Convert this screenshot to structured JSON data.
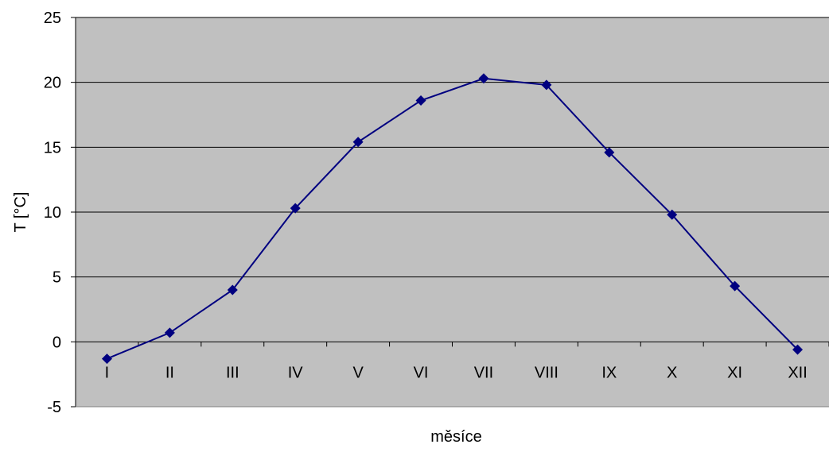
{
  "chart_data": {
    "type": "line",
    "title": "",
    "xlabel": "měsíce",
    "ylabel": "T [°C]",
    "categories": [
      "I",
      "II",
      "III",
      "IV",
      "V",
      "VI",
      "VII",
      "VIII",
      "IX",
      "X",
      "XI",
      "XII"
    ],
    "series": [
      {
        "values": [
          -1.3,
          0.7,
          4.0,
          10.3,
          15.4,
          18.6,
          20.3,
          19.8,
          14.6,
          9.8,
          4.3,
          -0.6
        ]
      }
    ],
    "ylim": [
      -5,
      25
    ],
    "yticks": [
      -5,
      0,
      5,
      10,
      15,
      20,
      25
    ],
    "grid": "horizontal",
    "legend": "none",
    "colors": {
      "plot_background": "#c0c0c0",
      "line": "#000080",
      "marker": "#000080",
      "gridline": "#000000"
    }
  }
}
